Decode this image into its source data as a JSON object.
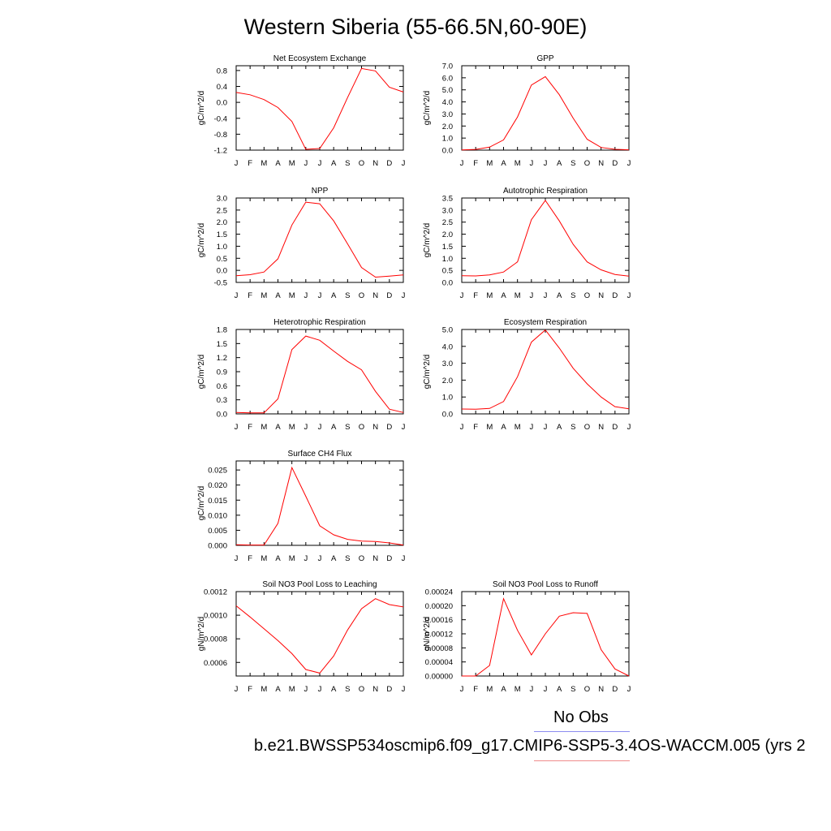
{
  "title": "Western Siberia (55-66.5N,60-90E)",
  "legend": {
    "obs_label": "No Obs",
    "model_label": "b.e21.BWSSP534oscmip6.f09_g17.CMIP6-SSP5-3.4OS-WACCM.005 (yrs 2",
    "obs_color": "#8c8cf0",
    "model_color": "#f08c8c"
  },
  "line_color": "#ff0000",
  "months": [
    "J",
    "F",
    "M",
    "A",
    "M",
    "J",
    "J",
    "A",
    "S",
    "O",
    "N",
    "D",
    "J"
  ],
  "chart_data": [
    {
      "type": "line",
      "title": "Net Ecosystem Exchange",
      "ylabel": "gC/m^2/d",
      "ylim": [
        -1.2,
        0.92
      ],
      "yticks": [
        "0.8",
        "0.4",
        "0.0",
        "-0.4",
        "-0.8",
        "-1.2"
      ],
      "ytick_values": [
        0.8,
        0.4,
        0.0,
        -0.4,
        -0.8,
        -1.2
      ],
      "values": [
        0.25,
        0.19,
        0.07,
        -0.13,
        -0.48,
        -1.18,
        -1.16,
        -0.64,
        0.12,
        0.85,
        0.79,
        0.38,
        0.26
      ]
    },
    {
      "type": "line",
      "title": "GPP",
      "ylabel": "gC/m^2/d",
      "ylim": [
        0.0,
        7.0
      ],
      "yticks": [
        "7.0",
        "6.0",
        "5.0",
        "4.0",
        "3.0",
        "2.0",
        "1.0",
        "0.0"
      ],
      "ytick_values": [
        7.0,
        6.0,
        5.0,
        4.0,
        3.0,
        2.0,
        1.0,
        0.0
      ],
      "values": [
        0.02,
        0.06,
        0.25,
        0.85,
        2.75,
        5.4,
        6.1,
        4.6,
        2.65,
        0.9,
        0.22,
        0.07,
        0.03
      ]
    },
    {
      "type": "line",
      "title": "NPP",
      "ylabel": "gC/m^2/d",
      "ylim": [
        -0.5,
        3.0
      ],
      "yticks": [
        "3.0",
        "2.5",
        "2.0",
        "1.5",
        "1.0",
        "0.5",
        "0.0",
        "-0.5"
      ],
      "ytick_values": [
        3.0,
        2.5,
        2.0,
        1.5,
        1.0,
        0.5,
        0.0,
        -0.5
      ],
      "values": [
        -0.22,
        -0.18,
        -0.07,
        0.48,
        1.88,
        2.83,
        2.76,
        2.05,
        1.1,
        0.12,
        -0.28,
        -0.24,
        -0.19
      ]
    },
    {
      "type": "line",
      "title": "Autotrophic Respiration",
      "ylabel": "gC/m^2/d",
      "ylim": [
        0.0,
        3.5
      ],
      "yticks": [
        "3.5",
        "3.0",
        "2.5",
        "2.0",
        "1.5",
        "1.0",
        "0.5",
        "0.0"
      ],
      "ytick_values": [
        3.5,
        3.0,
        2.5,
        2.0,
        1.5,
        1.0,
        0.5,
        0.0
      ],
      "values": [
        0.28,
        0.27,
        0.31,
        0.43,
        0.85,
        2.6,
        3.4,
        2.55,
        1.58,
        0.85,
        0.52,
        0.33,
        0.26
      ]
    },
    {
      "type": "line",
      "title": "Heterotrophic Respiration",
      "ylabel": "gC/m^2/d",
      "ylim": [
        0.0,
        1.8
      ],
      "yticks": [
        "1.8",
        "1.5",
        "1.2",
        "0.9",
        "0.6",
        "0.3",
        "0.0"
      ],
      "ytick_values": [
        1.8,
        1.5,
        1.2,
        0.9,
        0.6,
        0.3,
        0.0
      ],
      "values": [
        0.03,
        0.02,
        0.02,
        0.32,
        1.37,
        1.66,
        1.57,
        1.34,
        1.12,
        0.94,
        0.48,
        0.1,
        0.03
      ]
    },
    {
      "type": "line",
      "title": "Ecosystem Respiration",
      "ylabel": "gC/m^2/d",
      "ylim": [
        0.0,
        5.0
      ],
      "yticks": [
        "5.0",
        "4.0",
        "3.0",
        "2.0",
        "1.0",
        "0.0"
      ],
      "ytick_values": [
        5.0,
        4.0,
        3.0,
        2.0,
        1.0,
        0.0
      ],
      "values": [
        0.29,
        0.28,
        0.32,
        0.73,
        2.2,
        4.25,
        4.97,
        3.9,
        2.7,
        1.78,
        1.0,
        0.43,
        0.3
      ]
    },
    {
      "type": "line",
      "title": "Surface CH4 Flux",
      "ylabel": "gC/m^2/d",
      "ylim": [
        0.0,
        0.028
      ],
      "yticks": [
        "0.025",
        "0.020",
        "0.015",
        "0.010",
        "0.005",
        "0.000"
      ],
      "ytick_values": [
        0.025,
        0.02,
        0.015,
        0.01,
        0.005,
        0.0
      ],
      "values": [
        0.0002,
        0.0001,
        0.0001,
        0.0073,
        0.0258,
        0.0163,
        0.0065,
        0.0035,
        0.002,
        0.0014,
        0.0013,
        0.0008,
        0.0001
      ]
    },
    {
      "type": "line",
      "title": "Soil NO3 Pool Loss to Leaching",
      "ylabel": "gN/m^2/d",
      "ylim": [
        0.000485,
        0.0012
      ],
      "yticks": [
        "0.0012",
        "0.0010",
        "0.0008",
        "0.0006"
      ],
      "ytick_values": [
        0.0012,
        0.001,
        0.0008,
        0.0006
      ],
      "values": [
        0.00108,
        0.000985,
        0.000885,
        0.000785,
        0.000675,
        0.00054,
        0.00051,
        0.000655,
        0.000875,
        0.001055,
        0.00114,
        0.00109,
        0.00107
      ]
    },
    {
      "type": "line",
      "title": "Soil NO3 Pool Loss to Runoff",
      "ylabel": "gN/m^2/d",
      "ylim": [
        0.0,
        0.00024
      ],
      "yticks": [
        "0.00024",
        "0.00020",
        "0.00016",
        "0.00012",
        "0.00008",
        "0.00004",
        "0.00000"
      ],
      "ytick_values": [
        0.00024,
        0.0002,
        0.00016,
        0.00012,
        8e-05,
        4e-05,
        0.0
      ],
      "values": [
        0.0,
        0.0,
        3e-05,
        0.00022,
        0.00013,
        6e-05,
        0.00012,
        0.00017,
        0.00018,
        0.000178,
        7.5e-05,
        2e-05,
        0.0
      ]
    }
  ]
}
